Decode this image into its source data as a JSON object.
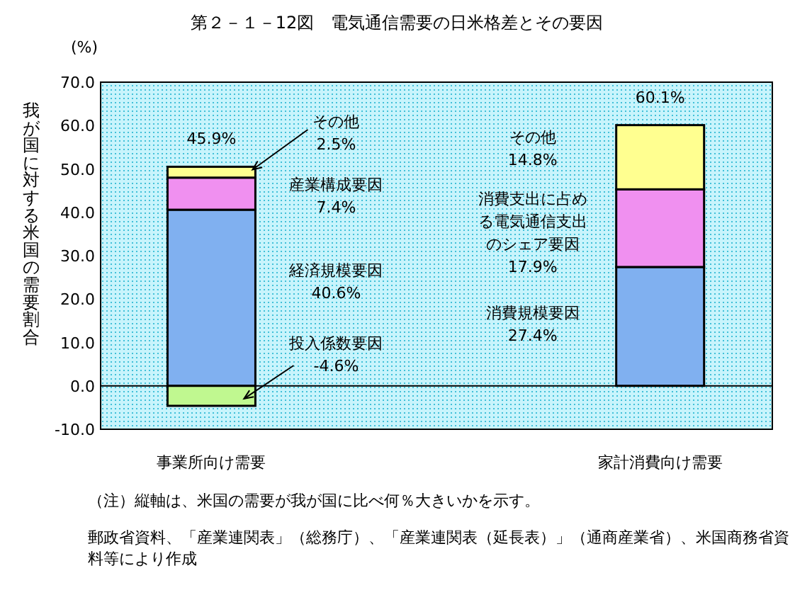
{
  "chart_data": {
    "type": "bar",
    "stacked": true,
    "title": "第２－１－12図　電気通信需要の日米格差とその要因",
    "ylabel": "我が国に対する米国の需要割合",
    "categories": [
      "事業所向け需要",
      "家計消費向け需要"
    ],
    "series": [
      {
        "color": "#80b0f0",
        "values": [
          40.6,
          27.4
        ]
      },
      {
        "color": "#f090f0",
        "values": [
          7.4,
          17.9
        ]
      },
      {
        "color": "#ffff90",
        "values": [
          2.5,
          14.8
        ]
      },
      {
        "color": "#c0f890",
        "values": [
          -4.6,
          null
        ]
      }
    ],
    "totals": [
      "45.9%",
      "60.1%"
    ],
    "ylim": [
      -10,
      70
    ],
    "yticks": [
      {
        "value": -10,
        "label": "-10.0"
      },
      {
        "value": 0,
        "label": "0.0"
      },
      {
        "value": 10,
        "label": "10.0"
      },
      {
        "value": 20,
        "label": "20.0"
      },
      {
        "value": 30,
        "label": "30.0"
      },
      {
        "value": 40,
        "label": "40.0"
      },
      {
        "value": 50,
        "label": "50.0"
      },
      {
        "value": 60,
        "label": "60.0"
      },
      {
        "value": 70,
        "label": "70.0"
      }
    ],
    "ref_lines": [
      {
        "axis": "y",
        "value": 0,
        "color": "#000000"
      }
    ],
    "annotations": [
      "(%)",
      "その他 2.5%",
      "産業構成要因 7.4%",
      "経済規模要因 40.6%",
      "投入係数要因 -4.6%",
      "その他 14.8%",
      "消費支出に占める電気通信支出のシェア要因 17.9%",
      "消費規模要因 27.4%",
      "（注）縦軸は、米国の需要が我が国に比べ何％大きいかを示す。",
      "郵政省資料、「産業連関表」（総務庁）、「産業連関表（延長表）」（通商産業省）、米国商務省資料等により作成"
    ]
  }
}
